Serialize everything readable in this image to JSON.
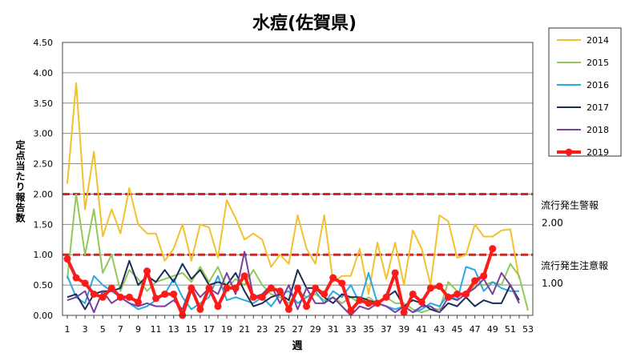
{
  "chart_data": {
    "type": "line",
    "title": "水痘(佐賀県)",
    "xlabel": "週",
    "ylabel": "定点当たり報告数",
    "ylim": [
      0,
      4.5
    ],
    "yticks": [
      "0.00",
      "0.50",
      "1.00",
      "1.50",
      "2.00",
      "2.50",
      "3.00",
      "3.50",
      "4.00",
      "4.50"
    ],
    "xlim": [
      1,
      53
    ],
    "xticks": [
      1,
      3,
      5,
      7,
      9,
      11,
      13,
      15,
      17,
      19,
      21,
      23,
      25,
      27,
      29,
      31,
      33,
      35,
      37,
      39,
      41,
      43,
      45,
      47,
      49,
      51,
      53
    ],
    "grid": true,
    "legend_placement": "right",
    "thresholds": [
      {
        "label": "流行発生警報",
        "value_label": "2.00",
        "value": 2.0,
        "color": "#e02020"
      },
      {
        "label": "流行発生注意報",
        "value_label": "1.00",
        "value": 1.0,
        "color": "#e02020"
      }
    ],
    "series": [
      {
        "name": "2014",
        "color": "#f2c12e",
        "values": [
          2.17,
          3.83,
          1.75,
          2.7,
          1.3,
          1.75,
          1.35,
          2.1,
          1.5,
          1.35,
          1.35,
          0.9,
          1.1,
          1.5,
          0.9,
          1.5,
          1.45,
          0.95,
          1.9,
          1.6,
          1.25,
          1.35,
          1.25,
          0.8,
          1.0,
          0.85,
          1.65,
          1.1,
          0.85,
          1.65,
          0.55,
          0.65,
          0.65,
          1.1,
          0.35,
          1.2,
          0.6,
          1.2,
          0.5,
          1.4,
          1.1,
          0.5,
          1.65,
          1.55,
          0.95,
          1.0,
          1.5,
          1.3,
          1.3,
          1.4,
          1.42,
          0.6
        ]
      },
      {
        "name": "2015",
        "color": "#92c85a",
        "values": [
          0.6,
          2.0,
          1.0,
          1.75,
          0.7,
          1.0,
          0.4,
          0.75,
          0.6,
          0.4,
          0.55,
          0.6,
          0.65,
          0.7,
          0.55,
          0.8,
          0.55,
          0.8,
          0.45,
          0.6,
          0.5,
          0.75,
          0.5,
          0.35,
          0.3,
          0.2,
          0.4,
          0.3,
          0.35,
          0.25,
          0.3,
          0.2,
          0.3,
          0.2,
          0.3,
          0.2,
          0.3,
          0.2,
          0.2,
          0.1,
          0.05,
          0.1,
          0.1,
          0.55,
          0.4,
          0.3,
          0.5,
          0.5,
          0.55,
          0.5,
          0.85,
          0.65,
          0.08
        ]
      },
      {
        "name": "2016",
        "color": "#2aa9e0",
        "values": [
          0.65,
          0.3,
          0.2,
          0.65,
          0.5,
          0.4,
          0.3,
          0.2,
          0.1,
          0.15,
          0.25,
          0.35,
          0.6,
          0.3,
          0.1,
          0.2,
          0.3,
          0.65,
          0.25,
          0.3,
          0.25,
          0.2,
          0.3,
          0.15,
          0.35,
          0.4,
          0.2,
          0.3,
          0.4,
          0.2,
          0.4,
          0.3,
          0.5,
          0.2,
          0.7,
          0.2,
          0.15,
          0.1,
          0.15,
          0.05,
          0.1,
          0.2,
          0.15,
          0.35,
          0.25,
          0.8,
          0.75,
          0.4,
          0.55,
          0.45,
          0.4,
          0.4
        ]
      },
      {
        "name": "2017",
        "color": "#1a2f55",
        "values": [
          0.3,
          0.35,
          0.1,
          0.35,
          0.4,
          0.4,
          0.45,
          0.9,
          0.5,
          0.65,
          0.55,
          0.75,
          0.55,
          0.85,
          0.6,
          0.75,
          0.5,
          0.55,
          0.5,
          0.7,
          0.4,
          0.15,
          0.2,
          0.3,
          0.35,
          0.25,
          0.75,
          0.45,
          0.45,
          0.3,
          0.2,
          0.35,
          0.3,
          0.3,
          0.25,
          0.2,
          0.3,
          0.4,
          0.15,
          0.25,
          0.2,
          0.1,
          0.05,
          0.2,
          0.15,
          0.3,
          0.15,
          0.25,
          0.2,
          0.2,
          0.5,
          0.25
        ]
      },
      {
        "name": "2018",
        "color": "#7b3fa0",
        "values": [
          0.25,
          0.3,
          0.4,
          0.05,
          0.4,
          0.2,
          0.3,
          0.2,
          0.15,
          0.2,
          0.15,
          0.15,
          0.25,
          0.1,
          0.5,
          0.3,
          0.45,
          0.35,
          0.7,
          0.35,
          1.05,
          0.3,
          0.35,
          0.5,
          0.2,
          0.5,
          0.1,
          0.45,
          0.2,
          0.2,
          0.3,
          0.15,
          0.0,
          0.15,
          0.1,
          0.2,
          0.15,
          0.05,
          0.15,
          0.05,
          0.15,
          0.15,
          0.05,
          0.3,
          0.25,
          0.35,
          0.45,
          0.6,
          0.35,
          0.7,
          0.5,
          0.2
        ]
      },
      {
        "name": "2019",
        "color": "#ff1a1a",
        "marker": true,
        "values": [
          0.93,
          0.62,
          0.53,
          0.35,
          0.3,
          0.45,
          0.3,
          0.3,
          0.22,
          0.73,
          0.28,
          0.35,
          0.35,
          0.0,
          0.45,
          0.1,
          0.45,
          0.15,
          0.45,
          0.45,
          0.65,
          0.3,
          0.3,
          0.45,
          0.4,
          0.1,
          0.45,
          0.15,
          0.45,
          0.35,
          0.62,
          0.53,
          0.08,
          0.25,
          0.2,
          0.2,
          0.3,
          0.7,
          0.05,
          0.35,
          0.22,
          0.45,
          0.48,
          0.3,
          0.35,
          0.35,
          0.57,
          0.65,
          1.1
        ]
      }
    ]
  }
}
